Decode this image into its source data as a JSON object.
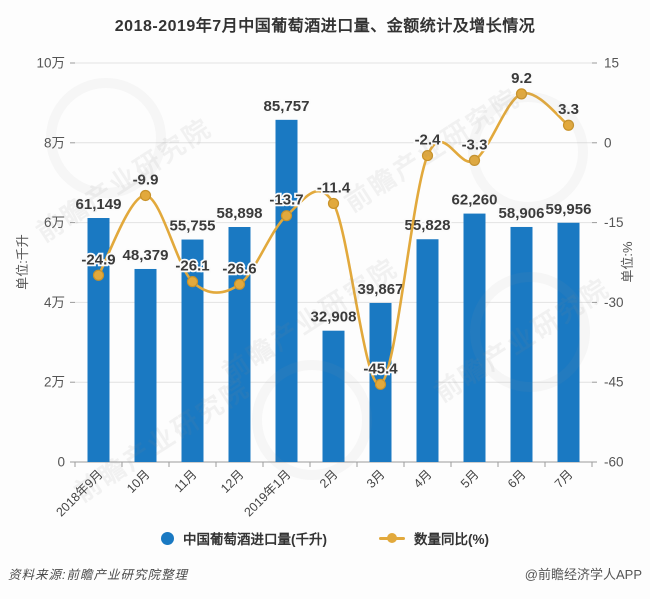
{
  "title": "2018-2019年7月中国葡萄酒进口量、金额统计及增长情况",
  "chart_data": {
    "type": "bar+line",
    "categories": [
      "2018年9月",
      "10月",
      "11月",
      "12月",
      "2019年1月",
      "2月",
      "3月",
      "4月",
      "5月",
      "6月",
      "7月"
    ],
    "series": [
      {
        "name": "中国葡萄酒进口量(千升)",
        "type": "bar",
        "axis": "left",
        "color": "#1a79c2",
        "values": [
          61149,
          48379,
          55755,
          58898,
          85757,
          32908,
          39867,
          55828,
          62260,
          58906,
          59956
        ]
      },
      {
        "name": "数量同比(%)",
        "type": "line",
        "axis": "right",
        "color": "#e2a93c",
        "marker_edge_color": "#c8922a",
        "values": [
          -24.9,
          -9.9,
          -26.1,
          -26.6,
          -13.7,
          -11.4,
          -45.4,
          -2.4,
          -3.3,
          9.2,
          3.3
        ]
      }
    ],
    "left_axis": {
      "title": "单位:千升",
      "ticks": [
        "10万",
        "8万",
        "6万",
        "4万",
        "2万",
        "0"
      ],
      "min": 0,
      "max": 100000
    },
    "right_axis": {
      "title": "单位:%",
      "ticks": [
        "15",
        "0",
        "-15",
        "-30",
        "-45",
        "-60"
      ],
      "min": -60,
      "max": 15
    },
    "grid": true,
    "legend_position": "bottom"
  },
  "footer": {
    "source": "资料来源:前瞻产业研究院整理",
    "credit": "@前瞻经济学人APP"
  },
  "watermark": {
    "text": "前瞻产业研究院"
  }
}
